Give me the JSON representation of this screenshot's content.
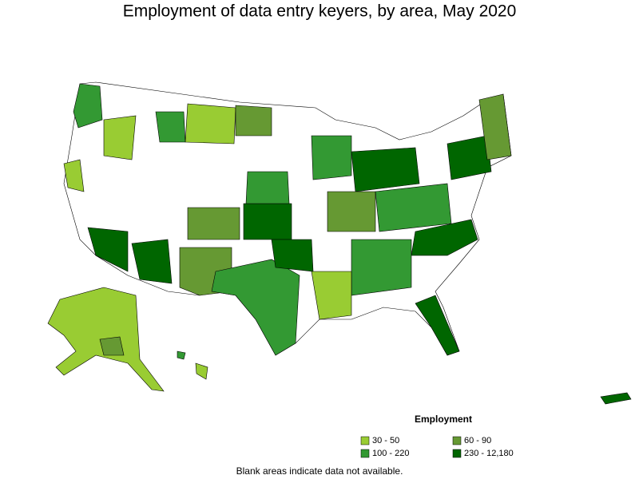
{
  "title": "Employment of data entry keyers, by area, May 2020",
  "legend": {
    "title": "Employment",
    "items": [
      {
        "label": "30 - 50",
        "color": "#99cc33"
      },
      {
        "label": "60 - 90",
        "color": "#669933"
      },
      {
        "label": "100 - 220",
        "color": "#339933"
      },
      {
        "label": "230 - 12,180",
        "color": "#006600"
      }
    ]
  },
  "note": "Blank areas indicate data not available."
}
